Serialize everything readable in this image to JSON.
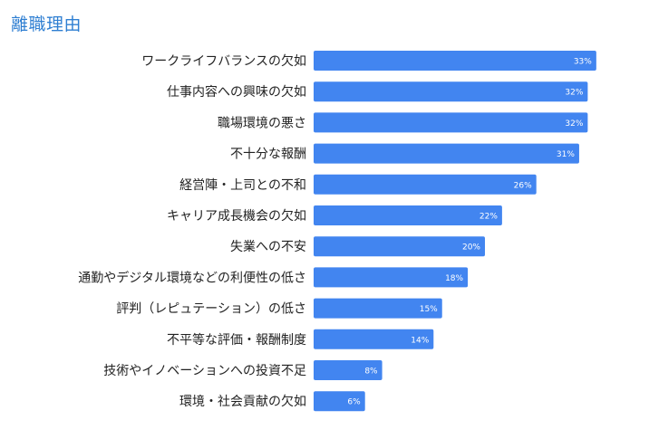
{
  "chart_data": {
    "type": "bar",
    "orientation": "horizontal",
    "title": "離職理由",
    "categories": [
      "ワークライフバランスの欠如",
      "仕事内容への興味の欠如",
      "職場環境の悪さ",
      "不十分な報酬",
      "経営陣・上司との不和",
      "キャリア成長機会の欠如",
      "失業への不安",
      "通勤やデジタル環境などの利便性の低さ",
      "評判（レピュテーション）の低さ",
      "不平等な評価・報酬制度",
      "技術やイノベーションへの投資不足",
      "環境・社会貢献の欠如"
    ],
    "values": [
      33,
      32,
      32,
      31,
      26,
      22,
      20,
      18,
      15,
      14,
      8,
      6
    ],
    "value_labels": [
      "33%",
      "32%",
      "32%",
      "31%",
      "26%",
      "22%",
      "20%",
      "18%",
      "15%",
      "14%",
      "8%",
      "6%"
    ],
    "unit": "%",
    "xlim": [
      0,
      35
    ],
    "xlabel": "",
    "ylabel": "",
    "grid": false,
    "legend": "none",
    "bar_color": "#4285f0",
    "title_color": "#2f7fd2"
  }
}
